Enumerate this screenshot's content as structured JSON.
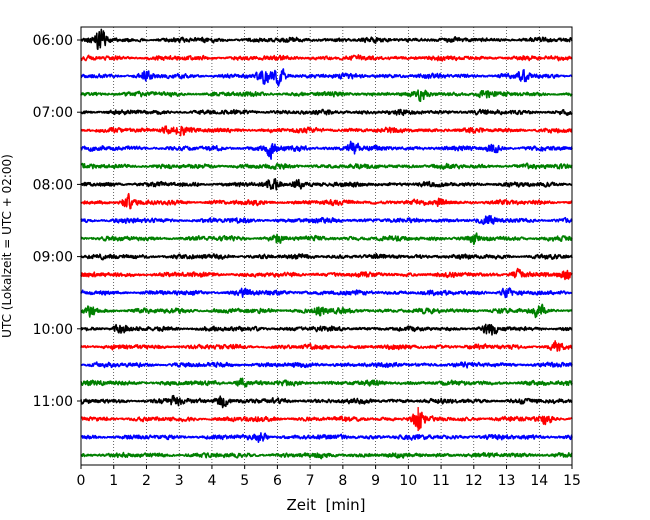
{
  "chart_data": {
    "type": "line",
    "title": "",
    "xlabel": "Zeit  [min]",
    "ylabel": "UTC (Lokalzeit = UTC + 02:00)",
    "xlim": [
      0,
      15
    ],
    "x_ticks": [
      "0",
      "1",
      "2",
      "3",
      "4",
      "5",
      "6",
      "7",
      "8",
      "9",
      "10",
      "11",
      "12",
      "13",
      "14",
      "15"
    ],
    "y_ticks": [
      "06:00",
      "07:00",
      "08:00",
      "09:00",
      "10:00",
      "11:00"
    ],
    "grid": "vertical dotted",
    "legend": "none",
    "rows_per_hour": 4,
    "color_cycle": [
      "#000000",
      "#ff0000",
      "#0000ff",
      "#008000"
    ],
    "series": [
      {
        "start": "06:00",
        "color": "#000000",
        "events": [
          [
            0.6,
            2.2
          ]
        ]
      },
      {
        "start": "06:15",
        "color": "#ff0000",
        "events": []
      },
      {
        "start": "06:30",
        "color": "#0000ff",
        "events": [
          [
            6.1,
            2.2
          ],
          [
            5.6,
            1.3
          ],
          [
            13.5,
            1.3
          ],
          [
            2.0,
            0.8
          ]
        ]
      },
      {
        "start": "06:45",
        "color": "#008000",
        "events": [
          [
            10.4,
            1.0
          ],
          [
            12.3,
            0.8
          ]
        ]
      },
      {
        "start": "07:00",
        "color": "#000000",
        "events": []
      },
      {
        "start": "07:15",
        "color": "#ff0000",
        "events": [
          [
            3.0,
            1.2
          ],
          [
            2.6,
            0.9
          ]
        ]
      },
      {
        "start": "07:30",
        "color": "#0000ff",
        "events": [
          [
            5.8,
            2.0
          ],
          [
            8.3,
            1.6
          ],
          [
            12.6,
            1.0
          ]
        ]
      },
      {
        "start": "07:45",
        "color": "#008000",
        "events": []
      },
      {
        "start": "08:00",
        "color": "#000000",
        "events": [
          [
            5.9,
            1.2
          ],
          [
            6.6,
            1.1
          ]
        ]
      },
      {
        "start": "08:15",
        "color": "#ff0000",
        "events": [
          [
            1.4,
            1.6
          ],
          [
            11.0,
            0.8
          ]
        ]
      },
      {
        "start": "08:30",
        "color": "#0000ff",
        "events": [
          [
            12.4,
            1.0
          ]
        ]
      },
      {
        "start": "08:45",
        "color": "#008000",
        "events": [
          [
            6.0,
            0.9
          ],
          [
            12.0,
            0.8
          ]
        ]
      },
      {
        "start": "09:00",
        "color": "#000000",
        "events": []
      },
      {
        "start": "09:15",
        "color": "#ff0000",
        "events": [
          [
            13.3,
            1.0
          ],
          [
            14.8,
            0.9
          ]
        ]
      },
      {
        "start": "09:30",
        "color": "#0000ff",
        "events": [
          [
            13.0,
            1.0
          ],
          [
            5.0,
            0.8
          ]
        ]
      },
      {
        "start": "09:45",
        "color": "#008000",
        "events": [
          [
            14.0,
            1.4
          ],
          [
            7.3,
            1.1
          ],
          [
            0.3,
            1.0
          ]
        ]
      },
      {
        "start": "10:00",
        "color": "#000000",
        "events": [
          [
            12.5,
            1.3
          ],
          [
            1.2,
            1.0
          ]
        ]
      },
      {
        "start": "10:15",
        "color": "#ff0000",
        "events": [
          [
            14.5,
            1.0
          ]
        ]
      },
      {
        "start": "10:30",
        "color": "#0000ff",
        "events": []
      },
      {
        "start": "10:45",
        "color": "#008000",
        "events": [
          [
            4.9,
            0.8
          ]
        ]
      },
      {
        "start": "11:00",
        "color": "#000000",
        "events": [
          [
            2.9,
            1.4
          ],
          [
            4.3,
            1.6
          ]
        ]
      },
      {
        "start": "11:15",
        "color": "#ff0000",
        "events": [
          [
            10.3,
            2.3
          ],
          [
            14.2,
            0.9
          ]
        ]
      },
      {
        "start": "11:30",
        "color": "#0000ff",
        "events": [
          [
            5.5,
            0.9
          ]
        ]
      },
      {
        "start": "11:45",
        "color": "#008000",
        "events": []
      }
    ]
  }
}
